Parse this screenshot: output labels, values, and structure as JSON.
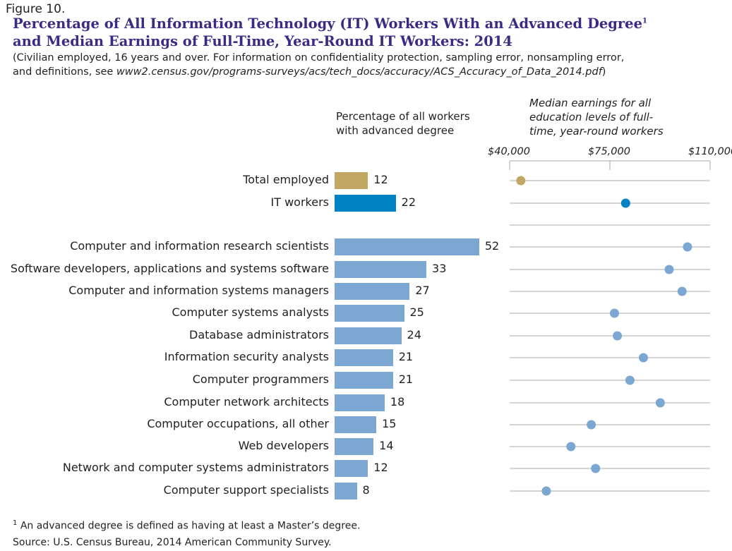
{
  "figure_label": "Figure 10.",
  "title_line1": "Percentage of All Information Technology (IT) Workers With an Advanced Degree",
  "title_sup": "1",
  "title_line2": "and Median Earnings of Full-Time, Year-Round IT Workers: 2014",
  "subtitle_line1": "(Civilian employed, 16 years and over. For information on confidentiality protection, sampling error, nonsampling error,",
  "subtitle_line2_prefix": "and definitions, see ",
  "subtitle_url": "www2.census.gov/programs-surveys/acs/tech_docs/accuracy/ACS_Accuracy_of_Data_2014.pdf",
  "subtitle_suffix": ")",
  "footnote_mark": "1",
  "footnote": "An advanced degree is defined as having at least a Master’s degree.",
  "source": "Source: U.S. Census Bureau, 2014 American Community Survey.",
  "colors": {
    "title": "#3d2a85",
    "total": "#c2a763",
    "it": "#0082c3",
    "occupation": "#7ba7d2"
  },
  "chart_data": [
    {
      "type": "bar",
      "title": "Percentage of all workers with advanced degree",
      "orientation": "horizontal",
      "categories": [
        "Total employed",
        "IT workers",
        "Computer and information research scientists",
        "Software developers, applications and systems software",
        "Computer and information systems managers",
        "Computer systems analysts",
        "Database administrators",
        "Information security analysts",
        "Computer programmers",
        "Computer network architects",
        "Computer occupations, all other",
        "Web developers",
        "Network and computer systems administrators",
        "Computer support specialists"
      ],
      "values": [
        12,
        22,
        52,
        33,
        27,
        25,
        24,
        21,
        21,
        18,
        15,
        14,
        12,
        8
      ]
    },
    {
      "type": "scatter",
      "title": "Median earnings for all education levels of full-time, year-round workers",
      "xlim": [
        40000,
        110000
      ],
      "tick_labels": [
        "$40,000",
        "$75,000",
        "$110,000"
      ],
      "ticks": [
        40000,
        75000,
        110000
      ],
      "values": [
        43900,
        80500,
        102100,
        95700,
        100200,
        76600,
        77600,
        86700,
        82000,
        92600,
        68500,
        61400,
        70000,
        52800
      ]
    }
  ]
}
